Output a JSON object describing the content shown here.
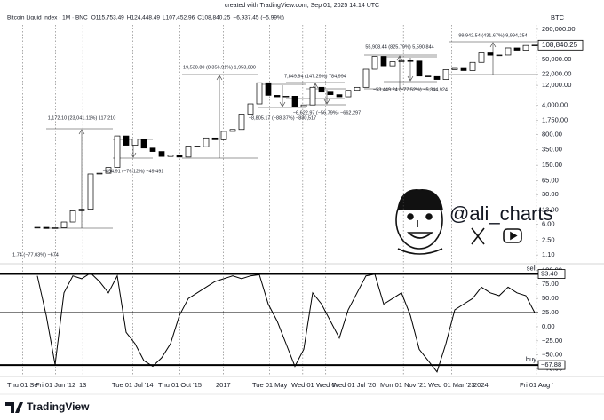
{
  "header": {
    "created": "created with TradingView.com, Sep 01, 2025 14:14 UTC",
    "symbol": "Bitcoin Liquid Index · 1M · BNC",
    "ohlc": [
      "O115,753.49",
      "H124,448.49",
      "L107,452.96",
      "C108,840.25",
      "−6,937.45 (−5.99%)"
    ],
    "currency": "BTC"
  },
  "chart_data": [
    {
      "type": "candlestick",
      "values": [
        5,
        4.7,
        4.9,
        6.7,
        12.4,
        13.5,
        93,
        97,
        133,
        750,
        450,
        640,
        386,
        320,
        244,
        263,
        236,
        430,
        416,
        673,
        609,
        963,
        1071,
        2480,
        4340,
        13800,
        6930,
        6390,
        6620,
        3740,
        4100,
        10800,
        8300,
        7200,
        6400,
        9140,
        10780,
        29000,
        58800,
        35000,
        43800,
        46300,
        45500,
        19900,
        19400,
        16500,
        28400,
        30400,
        27000,
        42300,
        71300,
        62700,
        63300,
        93400,
        82500,
        107100,
        108840.25
      ],
      "last_label": "108,840.25",
      "log_scale": true,
      "color_up": "#ffffff",
      "color_down": "#000000",
      "ylim": [
        0.75,
        300000
      ],
      "yticks": [
        {
          "value": 260000,
          "label": "260,000.00"
        },
        {
          "value": 50000,
          "label": "50,000.00"
        },
        {
          "value": 22000,
          "label": "22,000.00"
        },
        {
          "value": 12000,
          "label": "12,000.00"
        },
        {
          "value": 4000,
          "label": "4,000.00"
        },
        {
          "value": 1750,
          "label": "1,750.00"
        },
        {
          "value": 800,
          "label": "800.00"
        },
        {
          "value": 350,
          "label": "350.00"
        },
        {
          "value": 150,
          "label": "150.00"
        },
        {
          "value": 65,
          "label": "65.00"
        },
        {
          "value": 30,
          "label": "30.00"
        },
        {
          "value": 13,
          "label": "13.00"
        },
        {
          "value": 6,
          "label": "6.00"
        },
        {
          "value": 2.5,
          "label": "2.50"
        },
        {
          "value": 1.1,
          "label": "1.10"
        }
      ],
      "annotations": [
        "1.74 (−77.03%) −674",
        "1,172.10 (23,041.11%) 117,210",
        "−494.91 (−76.12%) −49,491",
        "19,530.80 (8,356.91%) 1,953,080",
        "−8,805.17 (−88.37%) −880,517",
        "7,849.94 (147.29%) 784,994",
        "−6,622.97 (−56.79%) −662,297",
        "55,908.44 (825.79%) 5,590,844",
        "−53,449.24 (−77.52%) −5,344,924",
        "99,942.54 (431.67%) 9,994,254"
      ]
    },
    {
      "type": "line",
      "values": [
        90,
        20,
        -67,
        60,
        90,
        85,
        95,
        80,
        60,
        90,
        -10,
        -30,
        -60,
        -70,
        -55,
        -30,
        20,
        50,
        60,
        70,
        80,
        85,
        90,
        85,
        90,
        92,
        40,
        10,
        -30,
        -70,
        -40,
        60,
        40,
        10,
        -20,
        30,
        60,
        90,
        93,
        40,
        50,
        60,
        20,
        -40,
        -60,
        -80,
        -30,
        30,
        40,
        50,
        70,
        60,
        55,
        70,
        60,
        55,
        25
      ],
      "color": "#000000",
      "ylim": [
        -85,
        110
      ],
      "yticks": [
        {
          "value": 100,
          "label": "100.00"
        },
        {
          "value": 75,
          "label": "75.00"
        },
        {
          "value": 50,
          "label": "50.00"
        },
        {
          "value": 25,
          "label": "25.00"
        },
        {
          "value": 0,
          "label": "0.00"
        },
        {
          "value": -25,
          "label": "−25.00"
        },
        {
          "value": -50,
          "label": "−50.00"
        },
        {
          "value": -75,
          "label": "−75.00"
        }
      ],
      "levels": [
        {
          "value": 93.4,
          "label": "93.40",
          "name": "sell"
        },
        {
          "value": 25
        },
        {
          "value": -67.88,
          "label": "−67.88",
          "name": "buy"
        }
      ]
    }
  ],
  "x_axis": {
    "labels": [
      "Thu 01 Se",
      "Fri 01 Jun '12",
      "13",
      "Tue 01 Jul '14",
      "Thu 01 Oct '15",
      "2017",
      "Tue 01 May",
      "Wed 01",
      "Wed 0",
      "Wed 01 Jul '20",
      "Mon 01 Nov '21",
      "Wed 01 Mar '23",
      "2024",
      "Fri 01 Aug '"
    ]
  },
  "watermark": {
    "handle": "@ali_charts"
  },
  "footer": {
    "brand": "TradingView"
  }
}
